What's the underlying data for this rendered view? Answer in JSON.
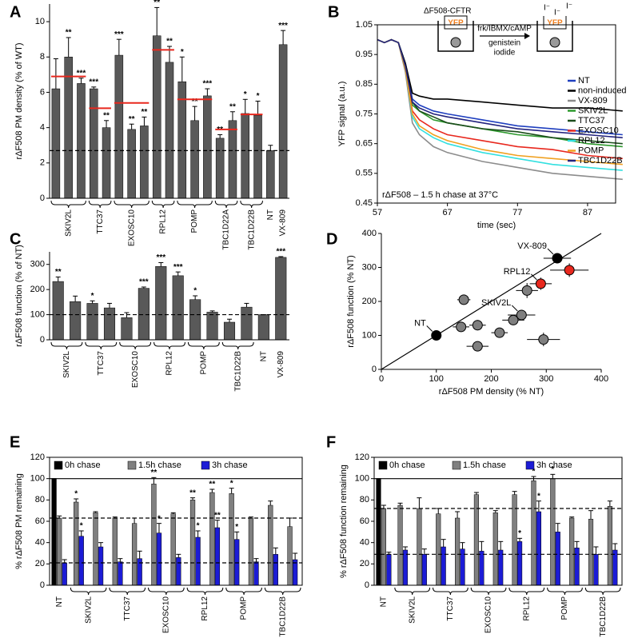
{
  "chart_data": [
    {
      "type": "bar",
      "panel": "A",
      "ylabel": "rΔF508 PM density (% of WT)",
      "categories": [
        "SKIV2L",
        null,
        null,
        "TTC37",
        null,
        "EXOSC10",
        null,
        null,
        "RPL12",
        null,
        "POMP",
        null,
        null,
        "TBC1D22A",
        null,
        "TBC1D22B",
        null,
        "NT",
        "VX-809"
      ],
      "values": [
        6.2,
        8.0,
        6.5,
        6.2,
        4.0,
        8.1,
        3.9,
        4.1,
        9.2,
        7.7,
        6.6,
        4.4,
        5.8,
        3.4,
        4.4,
        4.8,
        4.7,
        2.7,
        8.7
      ],
      "errors": [
        1.7,
        1.1,
        0.3,
        0.1,
        0.4,
        0.9,
        0.3,
        0.5,
        1.6,
        0.9,
        1.4,
        0.8,
        0.4,
        0.2,
        0.5,
        0.8,
        0.8,
        0.3,
        0.8
      ],
      "stars": [
        null,
        "**",
        "***",
        "***",
        "**",
        "***",
        "**",
        "**",
        "**",
        "**",
        "*",
        "**",
        "***",
        "**",
        "**",
        "*",
        "*",
        null,
        "***"
      ],
      "group_means": [
        6.9,
        null,
        null,
        5.1,
        null,
        5.4,
        null,
        null,
        8.4,
        null,
        5.6,
        null,
        null,
        3.9,
        null,
        4.75,
        null,
        null,
        null
      ],
      "color": "#595959",
      "mean_color": "#e8281e",
      "hlines": [
        {
          "value": 2.7,
          "style": "dashed"
        }
      ],
      "ylim": [
        0,
        11
      ],
      "yticks": [
        0,
        2,
        4,
        6,
        8,
        10
      ],
      "frame": false
    },
    {
      "type": "line",
      "panel": "B",
      "xlabel": "time (sec)",
      "ylabel": "YFP signal (a.u.)",
      "annotation": "rΔF508 – 1.5 h chase at 37°C",
      "schematic": {
        "label": "ΔF508-CFTR",
        "protein": "YFP",
        "treatment": [
          "frk/IBMX/cAMP",
          "genistein",
          "iodide"
        ],
        "ion": "I⁻"
      },
      "x": [
        57,
        58,
        59,
        60,
        61,
        62,
        63,
        65,
        67,
        72,
        77,
        82,
        87,
        92
      ],
      "series": [
        {
          "name": "NT",
          "color": "#1f3fbf",
          "values": [
            1.0,
            0.99,
            1.0,
            0.99,
            0.92,
            0.8,
            0.78,
            0.76,
            0.75,
            0.73,
            0.71,
            0.7,
            0.69,
            0.68
          ]
        },
        {
          "name": "non-induced",
          "color": "#000000",
          "values": [
            1.0,
            0.99,
            1.0,
            0.99,
            0.92,
            0.82,
            0.81,
            0.8,
            0.8,
            0.79,
            0.78,
            0.77,
            0.77,
            0.76
          ]
        },
        {
          "name": "VX-809",
          "color": "#8c8c8c",
          "values": [
            1.0,
            0.99,
            1.0,
            0.99,
            0.89,
            0.72,
            0.68,
            0.64,
            0.62,
            0.59,
            0.57,
            0.55,
            0.54,
            0.53
          ]
        },
        {
          "name": "SKIV2L",
          "color": "#2e9a2e",
          "values": [
            1.0,
            0.99,
            1.0,
            0.99,
            0.91,
            0.78,
            0.76,
            0.73,
            0.72,
            0.7,
            0.68,
            0.67,
            0.65,
            0.64
          ]
        },
        {
          "name": "TTC37",
          "color": "#1b4d1b",
          "values": [
            1.0,
            0.99,
            1.0,
            0.99,
            0.91,
            0.79,
            0.76,
            0.74,
            0.72,
            0.7,
            0.69,
            0.67,
            0.66,
            0.65
          ]
        },
        {
          "name": "EXOSC10",
          "color": "#e8281e",
          "values": [
            1.0,
            0.99,
            1.0,
            0.99,
            0.9,
            0.76,
            0.73,
            0.7,
            0.68,
            0.66,
            0.64,
            0.63,
            0.61,
            0.6
          ]
        },
        {
          "name": "RPL12",
          "color": "#33e0e0",
          "values": [
            1.0,
            0.99,
            1.0,
            0.99,
            0.9,
            0.74,
            0.7,
            0.67,
            0.65,
            0.62,
            0.6,
            0.58,
            0.57,
            0.56
          ]
        },
        {
          "name": "POMP",
          "color": "#f0a020",
          "values": [
            1.0,
            0.99,
            1.0,
            0.99,
            0.9,
            0.75,
            0.71,
            0.68,
            0.66,
            0.63,
            0.61,
            0.6,
            0.59,
            0.58
          ]
        },
        {
          "name": "TBC1D22B",
          "color": "#23237e",
          "values": [
            1.0,
            0.99,
            1.0,
            0.99,
            0.91,
            0.79,
            0.77,
            0.75,
            0.74,
            0.72,
            0.7,
            0.69,
            0.68,
            0.67
          ]
        }
      ],
      "legend": "right",
      "xlim": [
        57,
        91
      ],
      "xticks": [
        57,
        67,
        77,
        87
      ],
      "ylim": [
        0.45,
        1.05
      ],
      "yticks": [
        0.45,
        0.55,
        0.65,
        0.75,
        0.85,
        0.95,
        1.05
      ],
      "frame": true
    },
    {
      "type": "bar",
      "panel": "C",
      "ylabel": "rΔF508 function (% of NT)",
      "categories": [
        "SKIV2L",
        null,
        "TTC37",
        null,
        "EXOSC10",
        null,
        "RPL12",
        null,
        "POMP",
        null,
        "TBC1D22B",
        null,
        "NT",
        "VX-809"
      ],
      "values": [
        232,
        152,
        145,
        127,
        88,
        205,
        292,
        255,
        160,
        110,
        70,
        130,
        100,
        328
      ],
      "errors": [
        18,
        22,
        10,
        18,
        20,
        5,
        15,
        15,
        15,
        5,
        12,
        15,
        0,
        3
      ],
      "stars": [
        "**",
        null,
        "*",
        null,
        null,
        "***",
        "***",
        "***",
        "*",
        null,
        null,
        null,
        null,
        "***"
      ],
      "color": "#595959",
      "hlines": [
        {
          "value": 100,
          "style": "dashed"
        }
      ],
      "ylim": [
        0,
        350
      ],
      "yticks": [
        0,
        100,
        200,
        300
      ],
      "frame": false
    },
    {
      "type": "scatter",
      "panel": "D",
      "xlabel": "rΔF508 PM density (% NT)",
      "ylabel": "rΔF508 function (% NT)",
      "x": [
        100,
        320,
        290,
        342,
        150,
        145,
        175,
        240,
        255,
        265,
        215,
        295,
        175
      ],
      "y": [
        100,
        327,
        252,
        292,
        205,
        125,
        130,
        145,
        160,
        232,
        108,
        88,
        68
      ],
      "xerr": [
        5,
        25,
        20,
        35,
        12,
        15,
        15,
        20,
        25,
        20,
        15,
        30,
        20
      ],
      "yerr": [
        3,
        5,
        18,
        20,
        8,
        10,
        15,
        12,
        15,
        22,
        10,
        20,
        12
      ],
      "colors": [
        "#000000",
        "#000000",
        "#e8281e",
        "#e8281e",
        "#7f7f7f",
        "#7f7f7f",
        "#7f7f7f",
        "#7f7f7f",
        "#7f7f7f",
        "#7f7f7f",
        "#7f7f7f",
        "#7f7f7f",
        "#7f7f7f"
      ],
      "labels": [
        "NT",
        "VX-809",
        "RPL12",
        null,
        null,
        null,
        null,
        null,
        "SKIV2L",
        null,
        null,
        null,
        null
      ],
      "diagonal": true,
      "xlim": [
        0,
        400
      ],
      "ylim": [
        0,
        400
      ],
      "xticks": [
        0,
        100,
        200,
        300,
        400
      ],
      "yticks": [
        0,
        100,
        200,
        300,
        400
      ],
      "frame": false
    },
    {
      "type": "bar",
      "panel": "E",
      "ylabel": "% rΔF508 PM remaining",
      "categories": [
        "NT",
        "SKIV2L",
        null,
        "TTC37",
        null,
        "EXOSC10",
        null,
        "RPL12",
        null,
        "POMP",
        null,
        "TBC1D22B",
        null
      ],
      "series": [
        {
          "name": "0h chase",
          "color": "#000000",
          "values": [
            100,
            null,
            null,
            null,
            null,
            null,
            null,
            null,
            null,
            null,
            null,
            null,
            null
          ],
          "errors": [
            0,
            null,
            null,
            null,
            null,
            null,
            null,
            null,
            null,
            null,
            null,
            null,
            null
          ],
          "stars": [
            null,
            null,
            null,
            null,
            null,
            null,
            null,
            null,
            null,
            null,
            null,
            null,
            null
          ]
        },
        {
          "name": "1.5h chase",
          "color": "#808080",
          "values": [
            63,
            78,
            68,
            63,
            58,
            95,
            67,
            80,
            87,
            86,
            63,
            75,
            55
          ],
          "errors": [
            2,
            3,
            1,
            1,
            5,
            6,
            1,
            2,
            3,
            5,
            1,
            4,
            8
          ],
          "stars": [
            null,
            "*",
            null,
            null,
            null,
            "**",
            null,
            "**",
            "**",
            "*",
            null,
            null,
            null
          ]
        },
        {
          "name": "3h chase",
          "color": "#1c1cd6",
          "values": [
            21,
            46,
            36,
            22,
            25,
            49,
            26,
            45,
            54,
            43,
            22,
            29,
            24
          ],
          "errors": [
            3,
            5,
            4,
            3,
            7,
            9,
            3,
            6,
            7,
            7,
            3,
            6,
            6
          ],
          "stars": [
            null,
            "*",
            null,
            null,
            null,
            "*",
            null,
            "*",
            "**",
            "*",
            null,
            null,
            null
          ]
        }
      ],
      "hlines": [
        {
          "value": 100,
          "style": "solid"
        },
        {
          "value": 63,
          "style": "dashed"
        },
        {
          "value": 21,
          "style": "dashed"
        }
      ],
      "legend": "top-left",
      "ylim": [
        0,
        120
      ],
      "yticks": [
        0,
        20,
        40,
        60,
        80,
        100,
        120
      ],
      "frame": true
    },
    {
      "type": "bar",
      "panel": "F",
      "ylabel": "% rΔF508 function remaining",
      "categories": [
        "NT",
        "SKIV2L",
        null,
        "TTC37",
        null,
        "EXOSC10",
        null,
        "RPL12",
        null,
        "POMP",
        null,
        "TBC1D22B",
        null
      ],
      "series": [
        {
          "name": "0h chase",
          "color": "#000000",
          "values": [
            100,
            null,
            null,
            null,
            null,
            null,
            null,
            null,
            null,
            null,
            null,
            null,
            null
          ],
          "errors": [
            0,
            null,
            null,
            null,
            null,
            null,
            null,
            null,
            null,
            null,
            null,
            null,
            null
          ],
          "stars": [
            null,
            null,
            null,
            null,
            null,
            null,
            null,
            null,
            null,
            null,
            null,
            null,
            null
          ]
        },
        {
          "name": "1.5h chase",
          "color": "#808080",
          "values": [
            72,
            75,
            72,
            67,
            63,
            85,
            68,
            85,
            98,
            100,
            63,
            62,
            74
          ],
          "errors": [
            3,
            2,
            10,
            5,
            6,
            2,
            2,
            3,
            4,
            4,
            1,
            8,
            5
          ],
          "stars": [
            null,
            null,
            null,
            null,
            null,
            null,
            null,
            null,
            "*",
            "*",
            null,
            null,
            null
          ]
        },
        {
          "name": "3h chase",
          "color": "#1c1cd6",
          "values": [
            29,
            33,
            29,
            36,
            34,
            32,
            33,
            41,
            69,
            50,
            35,
            29,
            33
          ],
          "errors": [
            2,
            3,
            5,
            7,
            6,
            9,
            8,
            3,
            10,
            8,
            6,
            7,
            6
          ],
          "stars": [
            null,
            null,
            null,
            null,
            null,
            null,
            null,
            "*",
            "*",
            null,
            null,
            null,
            null
          ]
        }
      ],
      "hlines": [
        {
          "value": 100,
          "style": "solid"
        },
        {
          "value": 72,
          "style": "dashed"
        },
        {
          "value": 29,
          "style": "dashed"
        }
      ],
      "legend": "top-left",
      "ylim": [
        0,
        120
      ],
      "yticks": [
        0,
        20,
        40,
        60,
        80,
        100,
        120
      ],
      "frame": true
    }
  ]
}
